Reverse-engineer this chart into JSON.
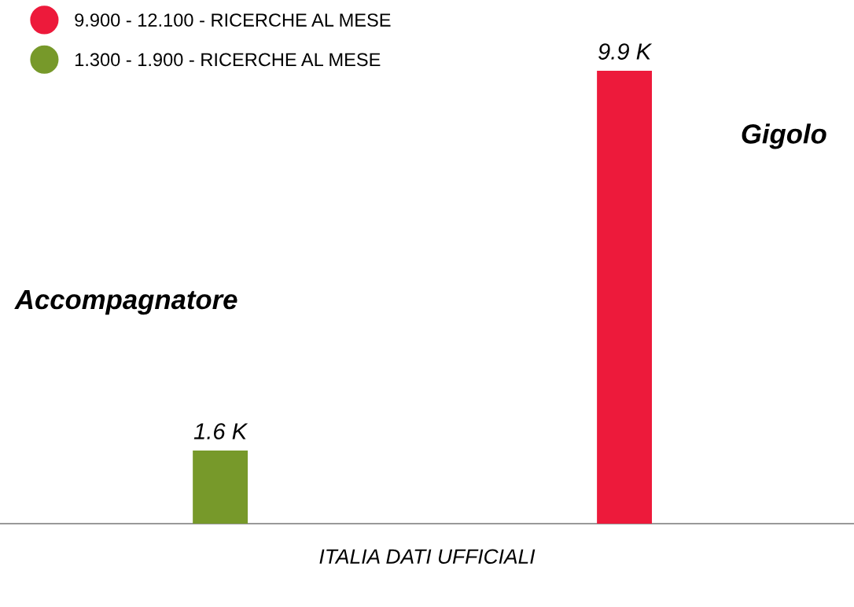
{
  "chart_data": {
    "type": "bar",
    "xlabel": "ITALIA DATI UFFICIALI",
    "categories": [
      null,
      null
    ],
    "stacked": true,
    "series": [
      {
        "name": "9.900 - 12.100 - RICERCHE AL MESE",
        "color": "#ed1a3b",
        "values": [
          0,
          9.9
        ],
        "value_labels": [
          null,
          "9.9 K"
        ]
      },
      {
        "name": "1.300 - 1.900 - RICERCHE AL MESE",
        "color": "#77992a",
        "values": [
          1.6,
          0
        ],
        "value_labels": [
          "1.6 K",
          null
        ]
      }
    ],
    "annotations": [
      "Accompagnatore",
      "Gigolo"
    ],
    "legend": "top left"
  }
}
